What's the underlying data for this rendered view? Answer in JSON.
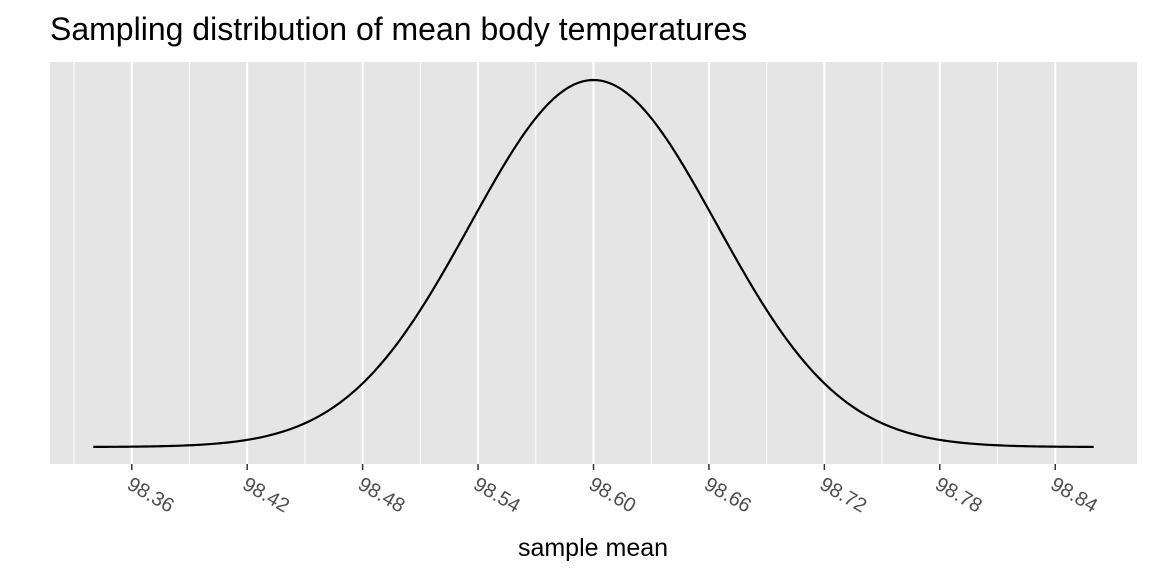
{
  "chart_data": {
    "type": "line",
    "title": "Sampling distribution of mean body temperatures",
    "xlabel": "sample mean",
    "ylabel": "",
    "x_ticks": [
      "98.36",
      "98.42",
      "98.48",
      "98.54",
      "98.60",
      "98.66",
      "98.72",
      "98.78",
      "98.84"
    ],
    "xlim": [
      98.3175,
      98.8825
    ],
    "x_range": [
      98.34,
      98.86
    ],
    "distribution": "normal",
    "mean": 98.6,
    "sd": 0.0641,
    "y_axis_labels_visible": false,
    "grid": true,
    "background_color": "#e5e5e5",
    "grid_color": "#ffffff",
    "line_color": "#000000"
  }
}
